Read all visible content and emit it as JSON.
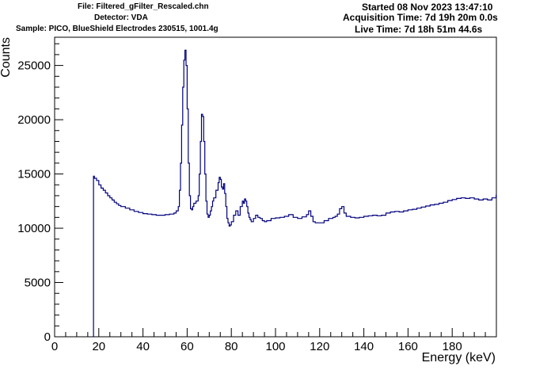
{
  "header": {
    "file": "File: Filtered_gFilter_Rescaled.chn",
    "detector": "Detector: VDA",
    "sample": "Sample: PICO, BlueShield Electrodes 230515, 1001.4g",
    "started": "Started 08 Nov 2023 13:47:10",
    "acquisition": "Acquisition Time: 7d 19h 20m 0.0s",
    "live": "Live Time: 7d 18h 51m 44.6s"
  },
  "chart_data": {
    "type": "line",
    "xlabel": "Energy (keV)",
    "ylabel": "Counts",
    "xlim": [
      0,
      200
    ],
    "ylim": [
      0,
      27600
    ],
    "x_ticks": [
      0,
      20,
      40,
      60,
      80,
      100,
      120,
      140,
      160,
      180
    ],
    "y_ticks": [
      0,
      5000,
      10000,
      15000,
      20000,
      25000
    ],
    "line_color": "#00007f",
    "series": [
      {
        "x": [
          17.5,
          17.6,
          18,
          19,
          20,
          21,
          22,
          23,
          24,
          25,
          26,
          27,
          28,
          29,
          30,
          32,
          34,
          36,
          38,
          40,
          42,
          44,
          46,
          48,
          50,
          52,
          54,
          55,
          56,
          56.5,
          57,
          57.5,
          58,
          58.5,
          59,
          59.5,
          60,
          60.5,
          61,
          61.5,
          62,
          62.5,
          63,
          64,
          65,
          65.5,
          66,
          66.5,
          67,
          67.5,
          68,
          68.5,
          69,
          69.5,
          70,
          70.5,
          71,
          71.5,
          72,
          73,
          74,
          74.5,
          75,
          75.5,
          76,
          76.5,
          77,
          77.5,
          78,
          78.5,
          79,
          79.5,
          80,
          81,
          82,
          83,
          84,
          85,
          85.5,
          86,
          86.5,
          87,
          87.5,
          88,
          88.5,
          89,
          90,
          91,
          92,
          93,
          94,
          95,
          96,
          98,
          100,
          102,
          104,
          106,
          108,
          110,
          112,
          114,
          115,
          116,
          117,
          118,
          120,
          122,
          124,
          126,
          127,
          128,
          129,
          130,
          131,
          132,
          134,
          136,
          138,
          140,
          142,
          144,
          146,
          148,
          150,
          152,
          154,
          156,
          158,
          160,
          162,
          164,
          166,
          168,
          170,
          172,
          174,
          176,
          178,
          180,
          182,
          184,
          186,
          188,
          190,
          192,
          194,
          196,
          198,
          199.9
        ],
        "values": [
          0,
          14800,
          14600,
          14400,
          14000,
          13700,
          13500,
          13250,
          13000,
          12800,
          12600,
          12400,
          12250,
          12100,
          12000,
          11850,
          11700,
          11550,
          11450,
          11350,
          11300,
          11250,
          11200,
          11200,
          11250,
          11300,
          11400,
          11600,
          12000,
          13500,
          16000,
          19500,
          23000,
          25500,
          26400,
          25000,
          21000,
          16000,
          13000,
          11800,
          11700,
          12000,
          12300,
          12500,
          13000,
          15000,
          18000,
          20500,
          20300,
          18000,
          15000,
          12500,
          11300,
          11000,
          11200,
          11600,
          12000,
          12500,
          12800,
          13500,
          14200,
          14700,
          14500,
          13800,
          13600,
          14100,
          13200,
          12000,
          10900,
          10500,
          10200,
          10300,
          10600,
          11200,
          11600,
          11200,
          12000,
          12500,
          12300,
          12700,
          12500,
          12000,
          11400,
          11000,
          10800,
          10600,
          10900,
          11200,
          11000,
          10900,
          10700,
          10600,
          10700,
          10900,
          10950,
          11000,
          11100,
          11250,
          11000,
          10900,
          11050,
          11250,
          11600,
          11100,
          10600,
          10500,
          10500,
          10700,
          10900,
          11000,
          11100,
          11300,
          11800,
          12000,
          11400,
          11100,
          11000,
          10950,
          11000,
          11100,
          11150,
          11200,
          11150,
          11200,
          11400,
          11500,
          11550,
          11500,
          11600,
          11700,
          11750,
          11850,
          11950,
          12050,
          12150,
          12200,
          12300,
          12400,
          12550,
          12650,
          12750,
          12800,
          12750,
          12800,
          12700,
          12600,
          12700,
          12600,
          12800,
          13100
        ]
      }
    ]
  }
}
